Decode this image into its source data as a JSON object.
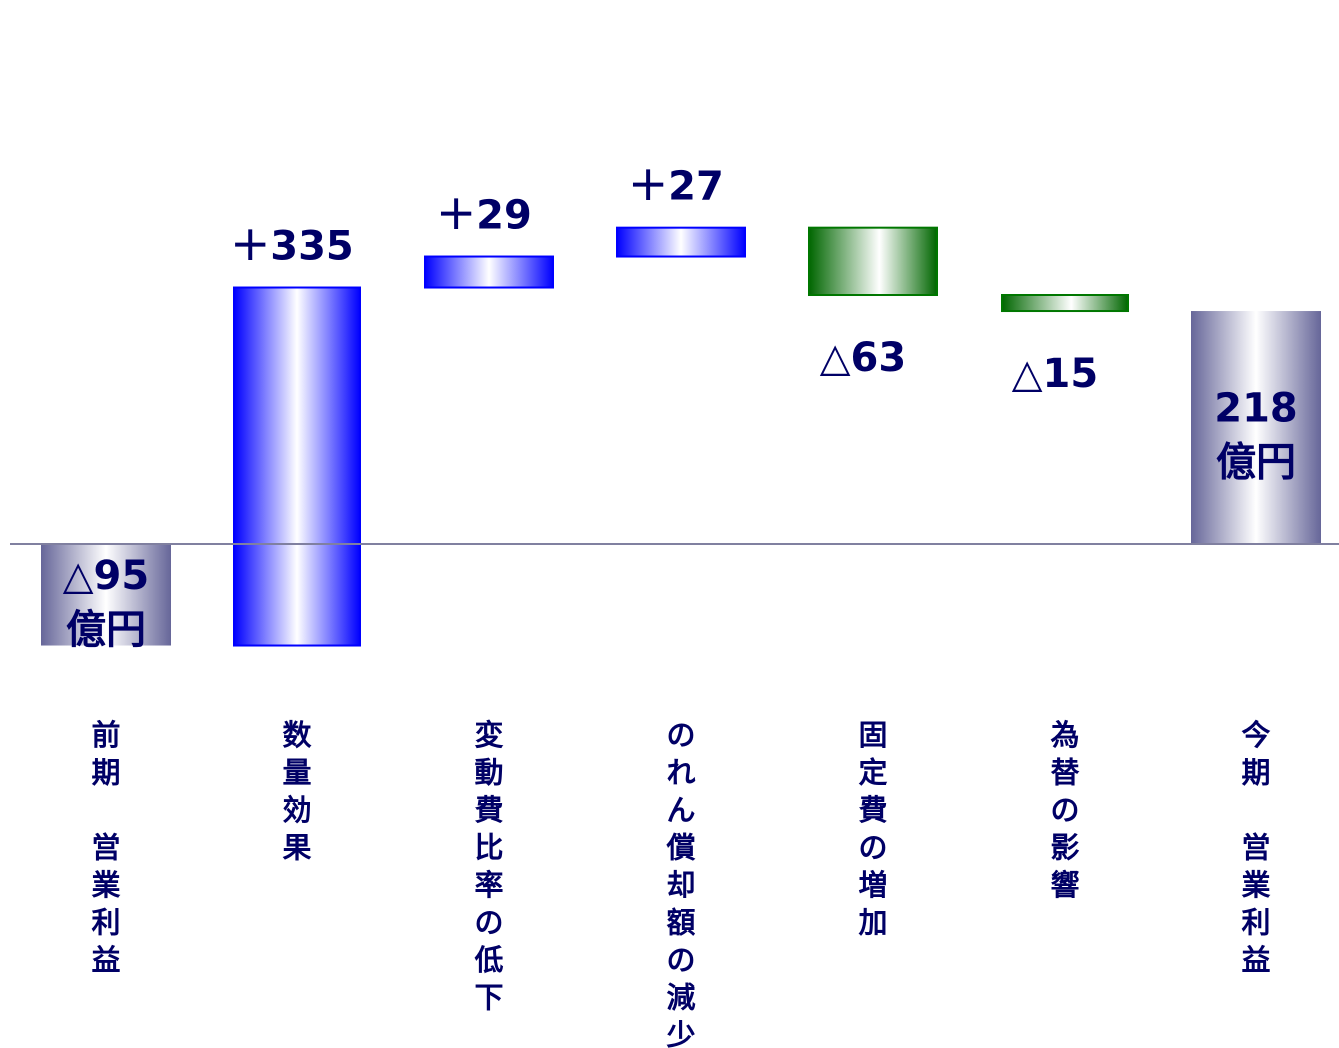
{
  "chart_data": {
    "type": "waterfall",
    "title": "",
    "xlabel": "",
    "ylabel": "",
    "ylim": [
      -110,
      240
    ],
    "grid": false,
    "legend": "none",
    "steps": [
      {
        "category": "前期　営業利益",
        "kind": "total",
        "value": -95,
        "label": "△95",
        "unit": "億円"
      },
      {
        "category": "数量効果",
        "kind": "increase",
        "value": 335,
        "label": "＋335"
      },
      {
        "category": "変動費比率の低下",
        "kind": "increase",
        "value": 29,
        "label": "＋29"
      },
      {
        "category": "のれん償却額の減少",
        "kind": "increase",
        "value": 27,
        "label": "＋27"
      },
      {
        "category": "固定費の増加",
        "kind": "decrease",
        "value": -63,
        "label": "△63"
      },
      {
        "category": "為替の影響",
        "kind": "decrease",
        "value": -15,
        "label": "△15"
      },
      {
        "category": "今期　営業利益",
        "kind": "total",
        "value": 218,
        "label": "218",
        "unit": "億円"
      }
    ],
    "colors": {
      "increase": "#0000ff",
      "decrease": "#007700",
      "total": "#666699",
      "label": "#000066",
      "axis": "#8080a0"
    }
  }
}
